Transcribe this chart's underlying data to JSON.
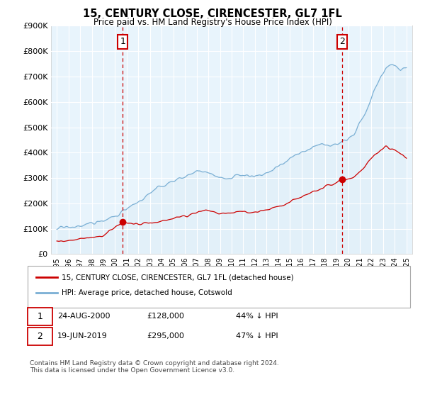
{
  "title": "15, CENTURY CLOSE, CIRENCESTER, GL7 1FL",
  "subtitle": "Price paid vs. HM Land Registry's House Price Index (HPI)",
  "legend_line1": "15, CENTURY CLOSE, CIRENCESTER, GL7 1FL (detached house)",
  "legend_line2": "HPI: Average price, detached house, Cotswold",
  "footer": "Contains HM Land Registry data © Crown copyright and database right 2024.\nThis data is licensed under the Open Government Licence v3.0.",
  "annotation1_date": "24-AUG-2000",
  "annotation1_price": "£128,000",
  "annotation1_hpi": "44% ↓ HPI",
  "annotation1_year": 2000.65,
  "annotation1_price_val": 128000,
  "annotation2_date": "19-JUN-2019",
  "annotation2_price": "£295,000",
  "annotation2_hpi": "47% ↓ HPI",
  "annotation2_year": 2019.46,
  "annotation2_price_val": 295000,
  "ylim": [
    0,
    900000
  ],
  "yticks": [
    0,
    100000,
    200000,
    300000,
    400000,
    500000,
    600000,
    700000,
    800000,
    900000
  ],
  "ytick_labels": [
    "£0",
    "£100K",
    "£200K",
    "£300K",
    "£400K",
    "£500K",
    "£600K",
    "£700K",
    "£800K",
    "£900K"
  ],
  "xlim": [
    1994.5,
    2025.5
  ],
  "hpi_color": "#7aafd4",
  "hpi_fill": "#ddeef8",
  "price_color": "#cc0000",
  "vline_color": "#cc0000",
  "background_color": "#ffffff",
  "plot_bg_color": "#e8f4fc",
  "grid_color": "#ffffff"
}
